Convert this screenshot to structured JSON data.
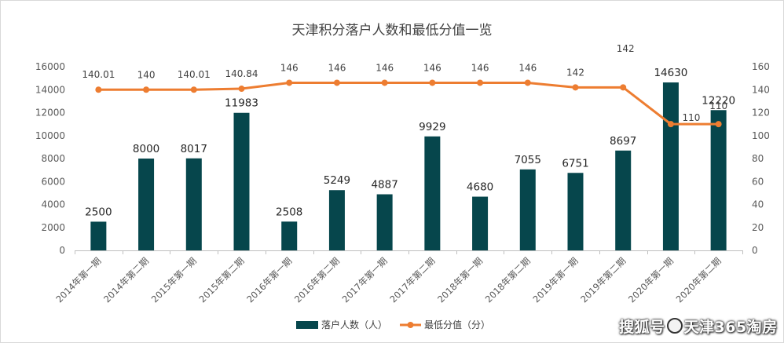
{
  "chart_data": {
    "type": "bar+line",
    "title": "天津积分落户人数和最低分值一览",
    "categories": [
      "2014年第一期",
      "2014年第二期",
      "2015年第一期",
      "2015年第二期",
      "2016年第一期",
      "2016年第二期",
      "2017年第一期",
      "2017年第二期",
      "2018年第一期",
      "2018年第二期",
      "2019年第一期",
      "2019年第二期",
      "2020年第一期",
      "2020年第二期"
    ],
    "series": [
      {
        "name": "落户人数（人）",
        "type": "bar",
        "axis": "left",
        "color": "#06464c",
        "values": [
          2500,
          8000,
          8017,
          11983,
          2508,
          5249,
          4887,
          9929,
          4680,
          7055,
          6751,
          8697,
          14630,
          12220
        ],
        "labels": [
          "2500",
          "8000",
          "8017",
          "11983",
          "2508",
          "5249",
          "4887",
          "9929",
          "4680",
          "7055",
          "6751",
          "8697",
          "14630",
          "12220"
        ]
      },
      {
        "name": "最低分值（分）",
        "type": "line",
        "axis": "right",
        "color": "#ed7d31",
        "values": [
          140.01,
          140,
          140.01,
          140.84,
          146,
          146,
          146,
          146,
          146,
          146,
          142,
          142,
          110,
          110
        ],
        "labels": [
          "140.01",
          "140",
          "140.01",
          "140.84",
          "146",
          "146",
          "146",
          "146",
          "146",
          "146",
          "142",
          "142",
          "110",
          "110"
        ]
      }
    ],
    "y_left": {
      "min": 0,
      "max": 16000,
      "step": 2000,
      "ticks": [
        "0",
        "2000",
        "4000",
        "6000",
        "8000",
        "10000",
        "12000",
        "14000",
        "16000"
      ]
    },
    "y_right": {
      "min": 0,
      "max": 160,
      "step": 20,
      "ticks": [
        "0",
        "20",
        "40",
        "60",
        "80",
        "100",
        "120",
        "140",
        "160"
      ]
    },
    "legend_position": "bottom",
    "grid": false
  },
  "watermark": {
    "text_left": "搜狐号",
    "text_right": "天津365淘房"
  }
}
